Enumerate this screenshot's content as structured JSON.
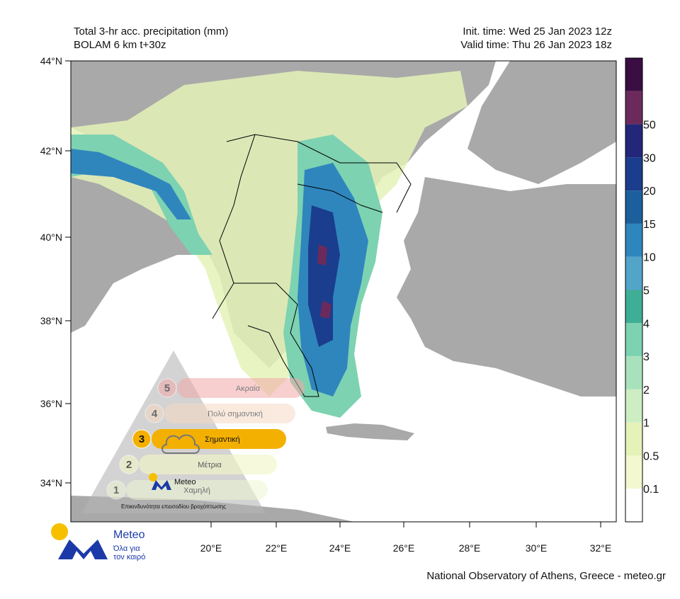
{
  "header": {
    "title_left": [
      "Total 3-hr acc. precipitation (mm)",
      "BOLAM 6 km t+30z"
    ],
    "title_right": [
      "Init. time: Wed 25 Jan 2023 12z",
      "Valid time: Thu 26 Jan 2023 18z"
    ]
  },
  "map": {
    "lat_labels": [
      "44°N",
      "42°N",
      "40°N",
      "38°N",
      "36°N",
      "34°N"
    ],
    "lon_labels": [
      "20°E",
      "22°E",
      "24°E",
      "26°E",
      "28°E",
      "30°E",
      "32°E"
    ]
  },
  "colorbar": {
    "labels": [
      "0.1",
      "0.5",
      "1",
      "2",
      "3",
      "4",
      "5",
      "10",
      "15",
      "20",
      "30",
      "50"
    ],
    "colors": [
      "#ffffff",
      "#f3f8cf",
      "#e5f2b8",
      "#cdeec2",
      "#a8e2bc",
      "#7dd2b1",
      "#3fae96",
      "#52a4c9",
      "#2f86bd",
      "#1d5f9c",
      "#1b3d8d",
      "#22277a",
      "#6c2a5c",
      "#3a0d43"
    ]
  },
  "warning": {
    "levels": [
      {
        "number": "5",
        "label": "Ακραία"
      },
      {
        "number": "4",
        "label": "Πολύ σημαντική"
      },
      {
        "number": "3",
        "label": "Σημαντική"
      },
      {
        "number": "2",
        "label": "Μέτρια"
      },
      {
        "number": "1",
        "label": "Χαμηλή"
      }
    ],
    "brand": "Meteo",
    "caption": "Επικινδυνότητα επεισοδίου βροχόπτωσης"
  },
  "logo": {
    "name": "Meteo",
    "tagline": [
      "Όλα για",
      "τον καιρό"
    ]
  },
  "footer": "National Observatory of Athens, Greece - meteo.gr"
}
